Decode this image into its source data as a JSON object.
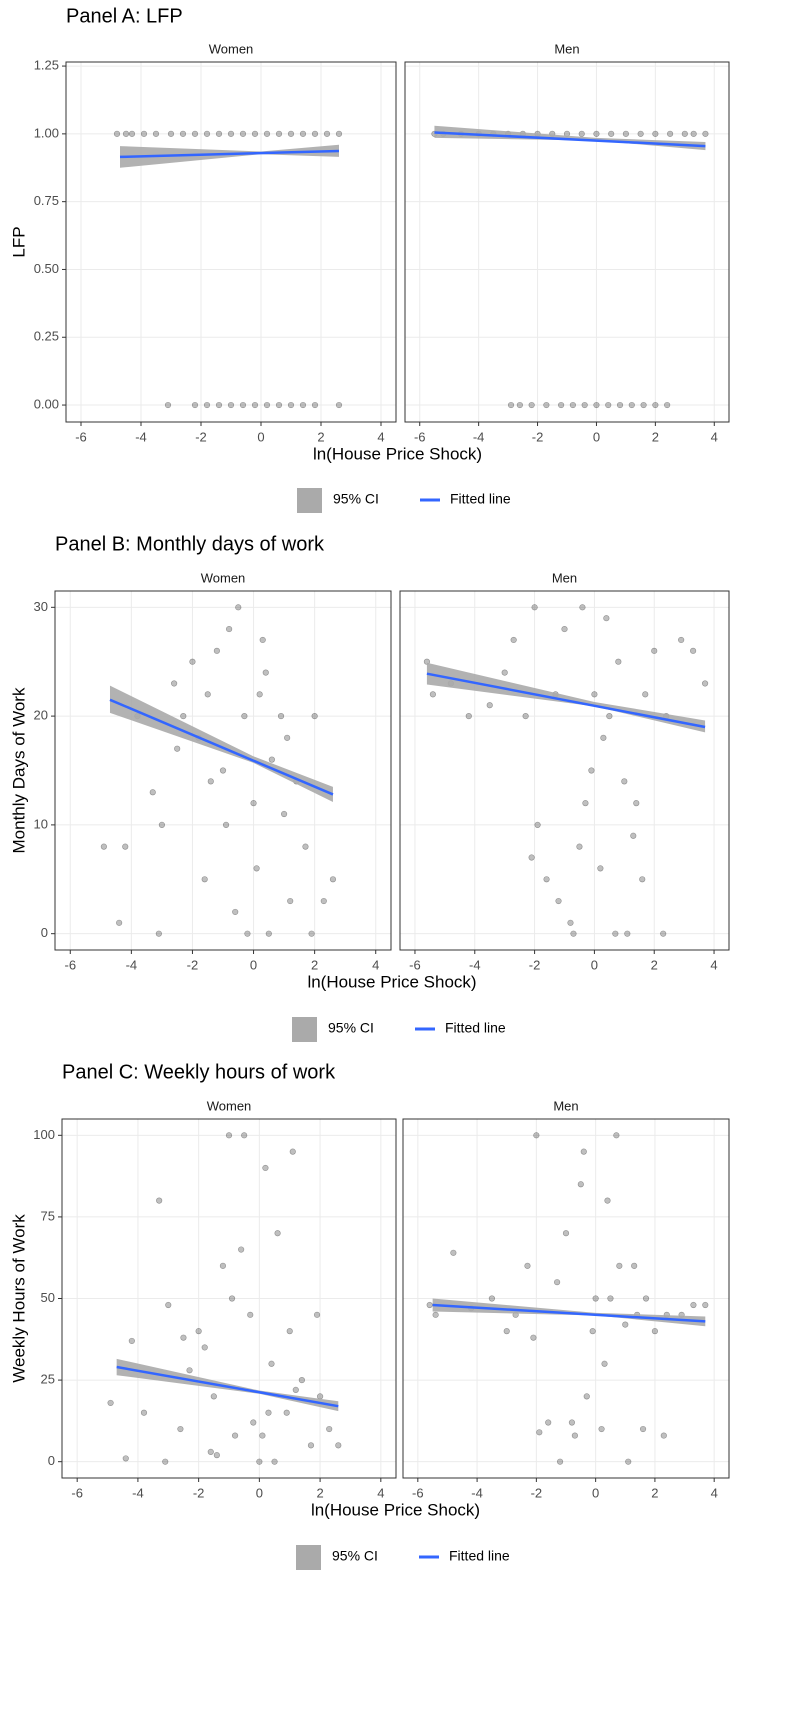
{
  "chart_data": [
    {
      "type": "scatter",
      "title": "Panel A: LFP",
      "xlabel": "ln(House Price Shock)",
      "ylabel": "LFP",
      "xlim": [
        -6.5,
        4.5
      ],
      "xticks": [
        -6,
        -4,
        -2,
        0,
        2,
        4
      ],
      "ylim": [
        -0.0625,
        1.265
      ],
      "yticks": [
        {
          "value": 0,
          "label": "0.00"
        },
        {
          "value": 0.25,
          "label": "0.25"
        },
        {
          "value": 0.5,
          "label": "0.50"
        },
        {
          "value": 0.75,
          "label": "0.75"
        },
        {
          "value": 1,
          "label": "1.00"
        },
        {
          "value": 1.25,
          "label": "1.25"
        }
      ],
      "grid": true,
      "point_color": "#000000",
      "series": [
        {
          "name": "95% CI",
          "color": "#aaaaaa"
        },
        {
          "name": "Fitted line",
          "color": "#3366ff"
        }
      ],
      "facets": [
        {
          "name": "Women",
          "points": {
            "x": [
              -4.8,
              -4.5,
              -4.3,
              -3.9,
              -3.5,
              -3.0,
              -2.6,
              -2.2,
              -1.8,
              -1.4,
              -1.0,
              -0.6,
              -0.2,
              0.2,
              0.6,
              1.0,
              1.4,
              1.8,
              2.2,
              2.6,
              -3.1,
              -2.2,
              -1.8,
              -1.4,
              -1.0,
              -0.6,
              -0.2,
              0.2,
              0.6,
              1.0,
              1.4,
              1.8,
              2.6
            ],
            "y": [
              1,
              1,
              1,
              1,
              1,
              1,
              1,
              1,
              1,
              1,
              1,
              1,
              1,
              1,
              1,
              1,
              1,
              1,
              1,
              1,
              0,
              0,
              0,
              0,
              0,
              0,
              0,
              0,
              0,
              0,
              0,
              0,
              0
            ]
          },
          "fit": {
            "x": [
              -4.7,
              2.6
            ],
            "y": [
              0.915,
              0.937
            ]
          },
          "ci": {
            "x": [
              -4.7,
              0,
              2.6
            ],
            "lower": [
              0.875,
              0.925,
              0.915
            ],
            "upper": [
              0.955,
              0.935,
              0.96
            ]
          }
        },
        {
          "name": "Men",
          "points": {
            "x": [
              -5.5,
              -5.2,
              -4.6,
              -4.0,
              -3.5,
              -3.0,
              -2.5,
              -2.0,
              -1.5,
              -1.0,
              -0.5,
              0,
              0.5,
              1.0,
              1.5,
              2.0,
              2.5,
              3.0,
              3.3,
              3.7,
              -2.9,
              -2.6,
              -2.2,
              -1.7,
              -1.2,
              -0.8,
              -0.4,
              0,
              0.4,
              0.8,
              1.2,
              1.6,
              2.0,
              2.4
            ],
            "y": [
              1,
              1,
              1,
              1,
              1,
              1,
              1,
              1,
              1,
              1,
              1,
              1,
              1,
              1,
              1,
              1,
              1,
              1,
              1,
              1,
              0,
              0,
              0,
              0,
              0,
              0,
              0,
              0,
              0,
              0,
              0,
              0,
              0,
              0
            ]
          },
          "fit": {
            "x": [
              -5.5,
              3.7
            ],
            "y": [
              1.005,
              0.955
            ]
          },
          "ci": {
            "x": [
              -5.5,
              0,
              3.7
            ],
            "lower": [
              0.985,
              0.975,
              0.94
            ],
            "upper": [
              1.03,
              0.985,
              0.97
            ]
          }
        }
      ]
    },
    {
      "type": "scatter",
      "title": "Panel B: Monthly days of work",
      "xlabel": "ln(House Price Shock)",
      "ylabel": "Monthly Days of Work",
      "xlim": [
        -6.5,
        4.5
      ],
      "xticks": [
        -6,
        -4,
        -2,
        0,
        2,
        4
      ],
      "ylim": [
        -1.5,
        31.5
      ],
      "yticks": [
        0,
        10,
        20,
        30
      ],
      "grid": true,
      "point_color": "#000000",
      "series": [
        {
          "name": "95% CI",
          "color": "#aaaaaa"
        },
        {
          "name": "Fitted line",
          "color": "#3366ff"
        }
      ],
      "facets": [
        {
          "name": "Women",
          "points": {
            "x": [
              -4.9,
              -4.4,
              -4.2,
              -3.8,
              -3.3,
              -3.1,
              -3.0,
              -2.6,
              -2.3,
              -2.0,
              -1.8,
              -1.5,
              -1.2,
              -1.0,
              -0.8,
              -0.5,
              -0.3,
              0.0,
              0.2,
              0.4,
              0.6,
              0.9,
              1.1,
              1.4,
              1.7,
              2.0,
              2.3,
              2.6,
              -2.5,
              -1.6,
              -0.9,
              -0.2,
              0.5,
              1.2,
              1.9,
              -1.4,
              -0.6,
              0.3,
              1.0,
              0.1
            ],
            "y": [
              8,
              1,
              8,
              20,
              13,
              0,
              10,
              23,
              20,
              25,
              18,
              22,
              26,
              15,
              28,
              30,
              20,
              12,
              22,
              24,
              16,
              20,
              18,
              14,
              8,
              20,
              3,
              5,
              17,
              5,
              10,
              0,
              0,
              3,
              0,
              14,
              2,
              27,
              11,
              6
            ]
          },
          "fit": {
            "x": [
              -4.7,
              2.6
            ],
            "y": [
              21.5,
              12.8
            ]
          },
          "ci": {
            "x": [
              -4.7,
              0,
              2.6
            ],
            "lower": [
              20.3,
              15.7,
              12.1
            ],
            "upper": [
              22.8,
              16.3,
              13.5
            ]
          }
        },
        {
          "name": "Men",
          "points": {
            "x": [
              -5.6,
              -5.4,
              -4.8,
              -4.2,
              -3.5,
              -3.0,
              -2.7,
              -2.3,
              -2.0,
              -1.6,
              -1.3,
              -1.0,
              -0.7,
              -0.4,
              -0.1,
              0.2,
              0.5,
              0.8,
              1.1,
              1.4,
              1.7,
              2.0,
              2.3,
              2.9,
              3.3,
              3.7,
              -1.9,
              -1.2,
              -0.5,
              0.3,
              1.0,
              1.6,
              -0.8,
              0.0,
              0.7,
              -2.1,
              2.4,
              -0.3,
              0.4,
              1.3
            ],
            "y": [
              25,
              22,
              23,
              20,
              21,
              24,
              27,
              20,
              30,
              5,
              22,
              28,
              0,
              30,
              15,
              6,
              20,
              25,
              0,
              12,
              22,
              26,
              0,
              27,
              26,
              23,
              10,
              3,
              8,
              18,
              14,
              5,
              1,
              22,
              0,
              7,
              20,
              12,
              29,
              9
            ]
          },
          "fit": {
            "x": [
              -5.6,
              3.7
            ],
            "y": [
              23.9,
              19.0
            ]
          },
          "ci": {
            "x": [
              -5.6,
              0,
              3.7
            ],
            "lower": [
              22.9,
              20.9,
              18.5
            ],
            "upper": [
              24.9,
              21.3,
              19.6
            ]
          }
        }
      ]
    },
    {
      "type": "scatter",
      "title": "Panel C: Weekly hours of work",
      "xlabel": "ln(House Price Shock)",
      "ylabel": "Weekly Hours of Work",
      "xlim": [
        -6.5,
        4.5
      ],
      "xticks": [
        -6,
        -4,
        -2,
        0,
        2,
        4
      ],
      "ylim": [
        -5,
        105
      ],
      "yticks": [
        0,
        25,
        50,
        75,
        100
      ],
      "grid": true,
      "point_color": "#000000",
      "series": [
        {
          "name": "95% CI",
          "color": "#aaaaaa"
        },
        {
          "name": "Fitted line",
          "color": "#3366ff"
        }
      ],
      "facets": [
        {
          "name": "Women",
          "points": {
            "x": [
              -4.9,
              -4.4,
              -4.2,
              -3.8,
              -3.3,
              -3.1,
              -3.0,
              -2.6,
              -2.3,
              -2.0,
              -1.8,
              -1.5,
              -1.2,
              -1.0,
              -0.8,
              -0.5,
              -0.3,
              0.0,
              0.2,
              0.4,
              0.6,
              0.9,
              1.1,
              1.4,
              1.7,
              2.0,
              2.3,
              2.6,
              -2.5,
              -1.6,
              -0.9,
              -0.2,
              0.5,
              1.2,
              1.9,
              -1.4,
              -0.6,
              0.3,
              1.0,
              0.1
            ],
            "y": [
              18,
              1,
              37,
              15,
              80,
              0,
              48,
              10,
              28,
              40,
              35,
              20,
              60,
              100,
              8,
              100,
              45,
              0,
              90,
              30,
              70,
              15,
              95,
              25,
              5,
              20,
              10,
              5,
              38,
              3,
              50,
              12,
              0,
              22,
              45,
              2,
              65,
              15,
              40,
              8
            ]
          },
          "fit": {
            "x": [
              -4.7,
              2.6
            ],
            "y": [
              29,
              17
            ]
          },
          "ci": {
            "x": [
              -4.7,
              0,
              2.6
            ],
            "lower": [
              26.5,
              20.8,
              15.5
            ],
            "upper": [
              31.5,
              21.8,
              18.5
            ]
          }
        },
        {
          "name": "Men",
          "points": {
            "x": [
              -5.6,
              -5.4,
              -4.8,
              -4.2,
              -3.5,
              -3.0,
              -2.7,
              -2.3,
              -2.0,
              -1.6,
              -1.3,
              -1.0,
              -0.7,
              -0.4,
              -0.1,
              0.2,
              0.5,
              0.8,
              1.1,
              1.4,
              1.7,
              2.0,
              2.3,
              2.9,
              3.3,
              3.7,
              -1.9,
              -1.2,
              -0.5,
              0.3,
              1.0,
              1.6,
              -0.8,
              0.0,
              0.7,
              -2.1,
              2.4,
              -0.3,
              0.4,
              1.3
            ],
            "y": [
              48,
              45,
              64,
              47,
              50,
              40,
              45,
              60,
              100,
              12,
              55,
              70,
              8,
              95,
              40,
              10,
              50,
              60,
              0,
              45,
              50,
              40,
              8,
              45,
              48,
              48,
              9,
              0,
              85,
              30,
              42,
              10,
              12,
              50,
              100,
              38,
              45,
              20,
              80,
              60
            ]
          },
          "fit": {
            "x": [
              -5.5,
              3.7
            ],
            "y": [
              48,
              43
            ]
          },
          "ci": {
            "x": [
              -5.5,
              0,
              3.7
            ],
            "lower": [
              46,
              44.8,
              41.5
            ],
            "upper": [
              50,
              45.6,
              44.5
            ]
          }
        }
      ]
    }
  ]
}
